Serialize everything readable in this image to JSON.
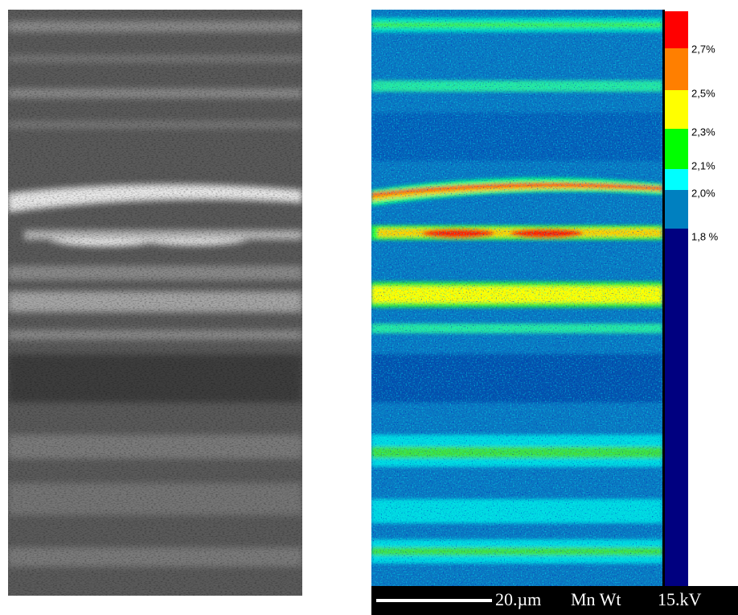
{
  "legend": {
    "labels": [
      "2,7%",
      "2,5%",
      "2,3%",
      "2,1%",
      "2,0%",
      "1,8 %"
    ]
  },
  "scale_bar": {
    "length": "20.µm",
    "element": "Mn Wt",
    "voltage": "15.kV"
  }
}
